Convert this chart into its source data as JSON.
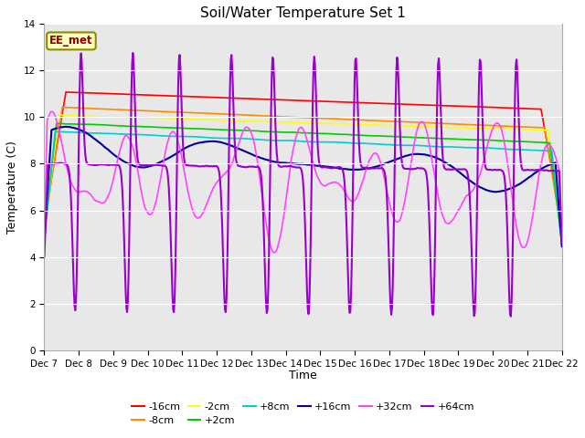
{
  "title": "Soil/Water Temperature Set 1",
  "xlabel": "Time",
  "ylabel": "Temperature (C)",
  "ylim": [
    0,
    14
  ],
  "yticks": [
    0,
    2,
    4,
    6,
    8,
    10,
    12,
    14
  ],
  "x_tick_labels": [
    "Dec 7",
    "Dec 8",
    "Dec 9",
    "Dec 10",
    "Dec 11",
    "Dec 12",
    "Dec 13",
    "Dec 14",
    "Dec 15",
    "Dec 16",
    "Dec 17",
    "Dec 18",
    "Dec 19",
    "Dec 20",
    "Dec 21",
    "Dec 22"
  ],
  "annotation_text": "EE_met",
  "annotation_color": "#8B0000",
  "annotation_bg": "#FFFFC0",
  "annotation_border": "#8B8B00",
  "series_colors": {
    "-16cm": "#FF0000",
    "-8cm": "#FF8C00",
    "-2cm": "#FFFF00",
    "+2cm": "#00CC00",
    "+8cm": "#00CCCC",
    "+16cm": "#000099",
    "+32cm": "#FF44FF",
    "+64cm": "#9900CC"
  },
  "series_lw": {
    "-16cm": 1.2,
    "-8cm": 1.2,
    "-2cm": 1.2,
    "+2cm": 1.2,
    "+8cm": 1.2,
    "+16cm": 1.5,
    "+32cm": 1.2,
    "+64cm": 1.5
  },
  "legend_order": [
    "-16cm",
    "-8cm",
    "-2cm",
    "+2cm",
    "+8cm",
    "+16cm",
    "+32cm",
    "+64cm"
  ],
  "plot_bg": "#E8E8E8",
  "grid_color": "#FFFFFF",
  "title_fontsize": 11,
  "axis_fontsize": 9,
  "tick_fontsize": 7.5
}
